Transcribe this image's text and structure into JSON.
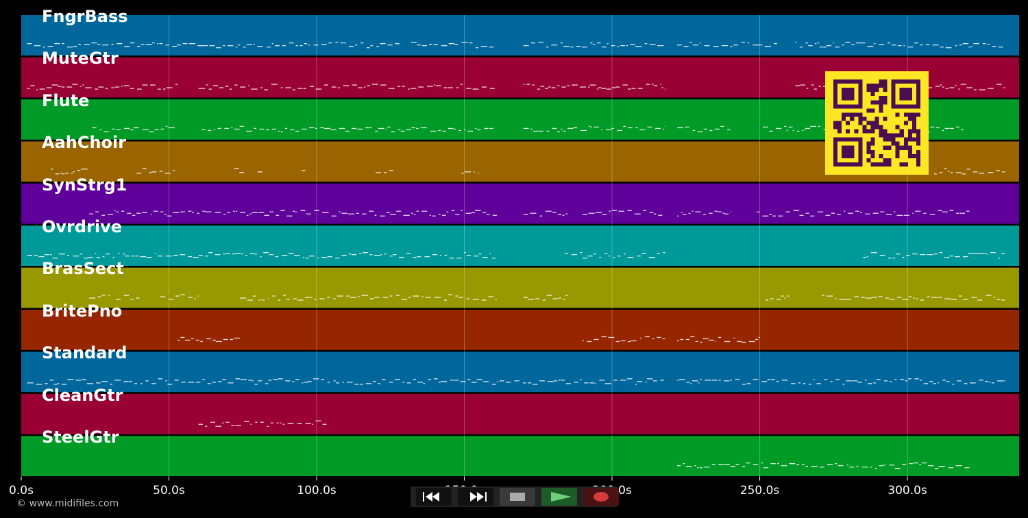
{
  "tracks": [
    {
      "name": "FngrBass",
      "color": "#00679c"
    },
    {
      "name": "MuteGtr",
      "color": "#990033"
    },
    {
      "name": "Flute",
      "color": "#009a26"
    },
    {
      "name": "AahChoir",
      "color": "#9a6500"
    },
    {
      "name": "SynStrg1",
      "color": "#5e0099"
    },
    {
      "name": "Ovrdrive",
      "color": "#009999"
    },
    {
      "name": "BrasSect",
      "color": "#989900"
    },
    {
      "name": "BritePno",
      "color": "#952600"
    },
    {
      "name": "Standard",
      "color": "#00679c"
    },
    {
      "name": "CleanGtr",
      "color": "#990033"
    },
    {
      "name": "SteelGtr",
      "color": "#009a26"
    }
  ],
  "timeline": {
    "ticks": [
      {
        "value": 0,
        "label": "0.0s"
      },
      {
        "value": 50,
        "label": "50.0s"
      },
      {
        "value": 100,
        "label": "100.0s"
      },
      {
        "value": 150,
        "label": "150.0s"
      },
      {
        "value": 200,
        "label": "200.0s"
      },
      {
        "value": 250,
        "label": "250.0s"
      },
      {
        "value": 300,
        "label": "300.0s"
      }
    ],
    "range": [
      0,
      337.8
    ]
  },
  "credit": "© www.midifiles.com",
  "qr": {
    "fg": "#4a0f4f",
    "bg": "#fde724"
  },
  "transport": {
    "buttons": [
      {
        "name": "rewind-button",
        "icon": "rewind-icon"
      },
      {
        "name": "fast-forward-button",
        "icon": "fast-forward-icon"
      },
      {
        "name": "stop-button",
        "icon": "stop-icon"
      },
      {
        "name": "play-button",
        "icon": "play-icon"
      },
      {
        "name": "record-button",
        "icon": "record-icon"
      }
    ]
  }
}
